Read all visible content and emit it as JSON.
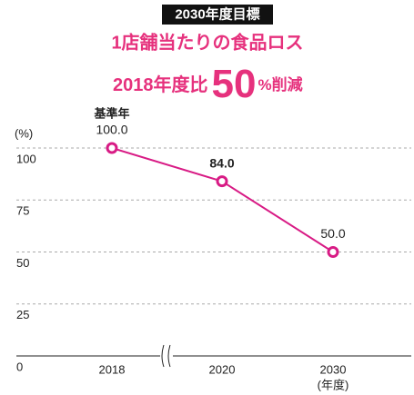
{
  "chart_data": {
    "type": "line",
    "header_label": "2030年度目標",
    "title": "1店舗当たりの食品ロス",
    "subtitle_parts": [
      "2018年度比",
      "50",
      "%削減"
    ],
    "y_axis_label": "(%)",
    "x_axis_label": "(年度)",
    "annotation": "基準年",
    "categories": [
      "2018",
      "2020",
      "2030"
    ],
    "values": [
      100,
      84,
      50
    ],
    "value_labels": [
      "100.0",
      "84.0",
      "50.0"
    ],
    "color": "#d81b85",
    "ylim": [
      0,
      100
    ],
    "yticks": [
      0,
      25,
      50,
      75,
      100
    ],
    "grid": true
  }
}
